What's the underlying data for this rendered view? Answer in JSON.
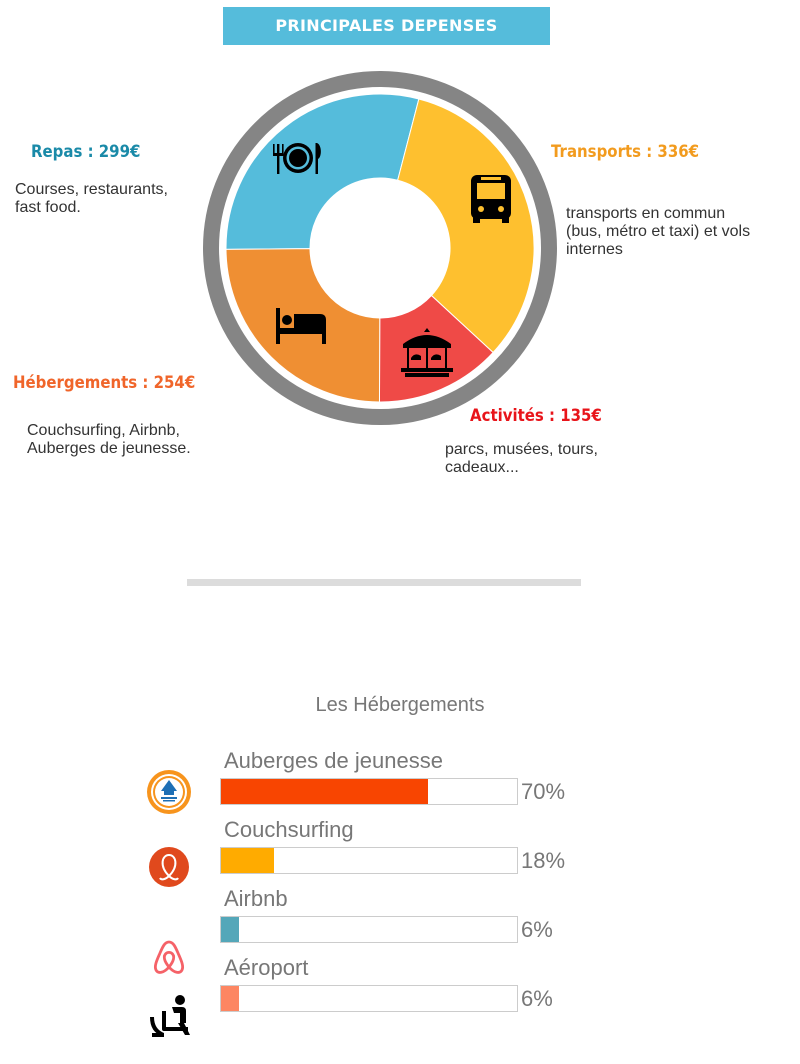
{
  "header": {
    "title": "PRINCIPALES DEPENSES"
  },
  "chart_data": [
    {
      "type": "pie",
      "title": "PRINCIPALES DEPENSES",
      "unit": "€",
      "slices": [
        {
          "name": "Repas",
          "label": "Repas : 299€",
          "value": 299,
          "color": "#55bcdb",
          "label_color": "#1a8aa8",
          "description": "Courses, restaurants, fast food.",
          "icon": "dining-icon"
        },
        {
          "name": "Transports",
          "label": "Transports : 336€",
          "value": 336,
          "color": "#fec02f",
          "label_color": "#f29b1e",
          "description": "transports en commun (bus, métro et taxi) et vols internes",
          "icon": "bus-icon"
        },
        {
          "name": "Activités",
          "label": "Activités : 135€",
          "value": 135,
          "color": "#ef4a47",
          "label_color": "#e8141a",
          "description": "parcs, musées, tours, cadeaux...",
          "icon": "carousel-icon"
        },
        {
          "name": "Hébergements",
          "label": "Hébergements : 254€",
          "value": 254,
          "color": "#ef8f33",
          "label_color": "#f0652a",
          "description": "Couchsurfing, Airbnb, Auberges de jeunesse.",
          "icon": "bed-icon"
        }
      ]
    },
    {
      "type": "bar",
      "title": "Les Hébergements",
      "categories": [
        "Auberges de jeunesse",
        "Couchsurfing",
        "Airbnb",
        "Aéroport"
      ],
      "values": [
        70,
        18,
        6,
        6
      ],
      "value_labels": [
        "70%",
        "18%",
        "6%",
        "6%"
      ],
      "colors": [
        "#f84501",
        "#ffab00",
        "#54a7b9",
        "#fd8662"
      ],
      "icons": [
        "hostelling-international-icon",
        "couchsurfing-icon",
        "airbnb-icon",
        "airport-seat-icon"
      ],
      "ylim": [
        0,
        100
      ]
    }
  ]
}
